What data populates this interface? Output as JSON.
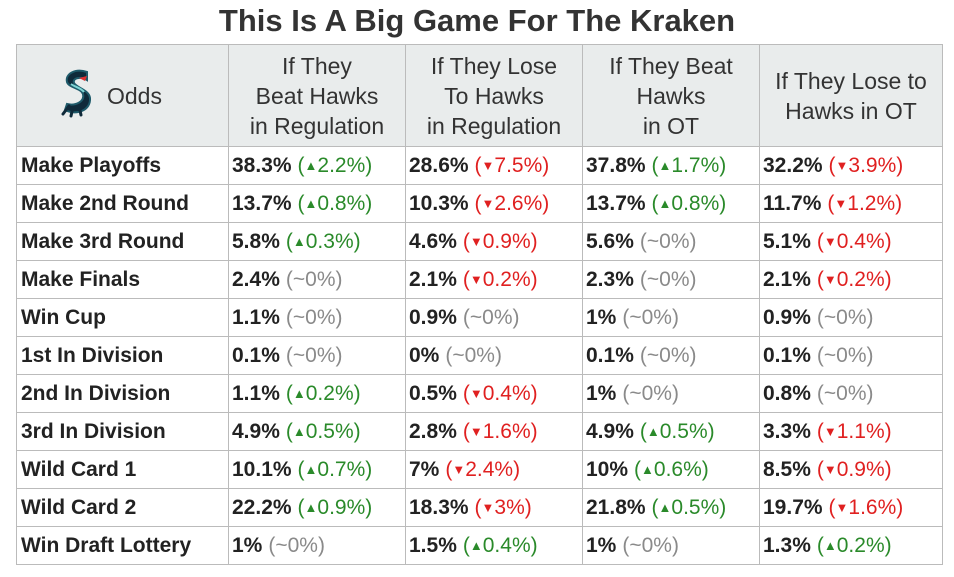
{
  "title": "This Is A Big Game For The Kraken",
  "header": {
    "odds_label": "Odds",
    "logo_icon": "kraken-logo-icon",
    "columns": [
      [
        "If They",
        "Beat Hawks",
        "in Regulation"
      ],
      [
        "If They Lose",
        "To Hawks",
        "in Regulation"
      ],
      [
        "If They Beat",
        "Hawks",
        "in OT"
      ],
      [
        "If They Lose to",
        "Hawks in OT"
      ]
    ]
  },
  "colors": {
    "up": "#2a8a2a",
    "down": "#e02020",
    "flat": "#8a8a8a",
    "header_bg": "#e9ecec"
  },
  "rows": [
    {
      "label": "Make Playoffs",
      "cells": [
        {
          "value": "38.3%",
          "dir": "up",
          "change": "2.2%"
        },
        {
          "value": "28.6%",
          "dir": "down",
          "change": "7.5%"
        },
        {
          "value": "37.8%",
          "dir": "up",
          "change": "1.7%"
        },
        {
          "value": "32.2%",
          "dir": "down",
          "change": "3.9%"
        }
      ]
    },
    {
      "label": "Make 2nd Round",
      "cells": [
        {
          "value": "13.7%",
          "dir": "up",
          "change": "0.8%"
        },
        {
          "value": "10.3%",
          "dir": "down",
          "change": "2.6%"
        },
        {
          "value": "13.7%",
          "dir": "up",
          "change": "0.8%"
        },
        {
          "value": "11.7%",
          "dir": "down",
          "change": "1.2%"
        }
      ]
    },
    {
      "label": "Make 3rd Round",
      "cells": [
        {
          "value": "5.8%",
          "dir": "up",
          "change": "0.3%"
        },
        {
          "value": "4.6%",
          "dir": "down",
          "change": "0.9%"
        },
        {
          "value": "5.6%",
          "dir": "flat",
          "change": "~0%"
        },
        {
          "value": "5.1%",
          "dir": "down",
          "change": "0.4%"
        }
      ]
    },
    {
      "label": "Make Finals",
      "cells": [
        {
          "value": "2.4%",
          "dir": "flat",
          "change": "~0%"
        },
        {
          "value": "2.1%",
          "dir": "down",
          "change": "0.2%"
        },
        {
          "value": "2.3%",
          "dir": "flat",
          "change": "~0%"
        },
        {
          "value": "2.1%",
          "dir": "down",
          "change": "0.2%"
        }
      ]
    },
    {
      "label": "Win Cup",
      "cells": [
        {
          "value": "1.1%",
          "dir": "flat",
          "change": "~0%"
        },
        {
          "value": "0.9%",
          "dir": "flat",
          "change": "~0%"
        },
        {
          "value": "1%",
          "dir": "flat",
          "change": "~0%"
        },
        {
          "value": "0.9%",
          "dir": "flat",
          "change": "~0%"
        }
      ]
    },
    {
      "label": "1st In Division",
      "cells": [
        {
          "value": "0.1%",
          "dir": "flat",
          "change": "~0%"
        },
        {
          "value": "0%",
          "dir": "flat",
          "change": "~0%"
        },
        {
          "value": "0.1%",
          "dir": "flat",
          "change": "~0%"
        },
        {
          "value": "0.1%",
          "dir": "flat",
          "change": "~0%"
        }
      ]
    },
    {
      "label": "2nd In Division",
      "cells": [
        {
          "value": "1.1%",
          "dir": "up",
          "change": "0.2%"
        },
        {
          "value": "0.5%",
          "dir": "down",
          "change": "0.4%"
        },
        {
          "value": "1%",
          "dir": "flat",
          "change": "~0%"
        },
        {
          "value": "0.8%",
          "dir": "flat",
          "change": "~0%"
        }
      ]
    },
    {
      "label": "3rd In Division",
      "cells": [
        {
          "value": "4.9%",
          "dir": "up",
          "change": "0.5%"
        },
        {
          "value": "2.8%",
          "dir": "down",
          "change": "1.6%"
        },
        {
          "value": "4.9%",
          "dir": "up",
          "change": "0.5%"
        },
        {
          "value": "3.3%",
          "dir": "down",
          "change": "1.1%"
        }
      ]
    },
    {
      "label": "Wild Card 1",
      "cells": [
        {
          "value": "10.1%",
          "dir": "up",
          "change": "0.7%"
        },
        {
          "value": "7%",
          "dir": "down",
          "change": "2.4%"
        },
        {
          "value": "10%",
          "dir": "up",
          "change": "0.6%"
        },
        {
          "value": "8.5%",
          "dir": "down",
          "change": "0.9%"
        }
      ]
    },
    {
      "label": "Wild Card 2",
      "cells": [
        {
          "value": "22.2%",
          "dir": "up",
          "change": "0.9%"
        },
        {
          "value": "18.3%",
          "dir": "down",
          "change": "3%"
        },
        {
          "value": "21.8%",
          "dir": "up",
          "change": "0.5%"
        },
        {
          "value": "19.7%",
          "dir": "down",
          "change": "1.6%"
        }
      ]
    },
    {
      "label": "Win Draft Lottery",
      "cells": [
        {
          "value": "1%",
          "dir": "flat",
          "change": "~0%"
        },
        {
          "value": "1.5%",
          "dir": "up",
          "change": "0.4%"
        },
        {
          "value": "1%",
          "dir": "flat",
          "change": "~0%"
        },
        {
          "value": "1.3%",
          "dir": "up",
          "change": "0.2%"
        }
      ]
    }
  ]
}
